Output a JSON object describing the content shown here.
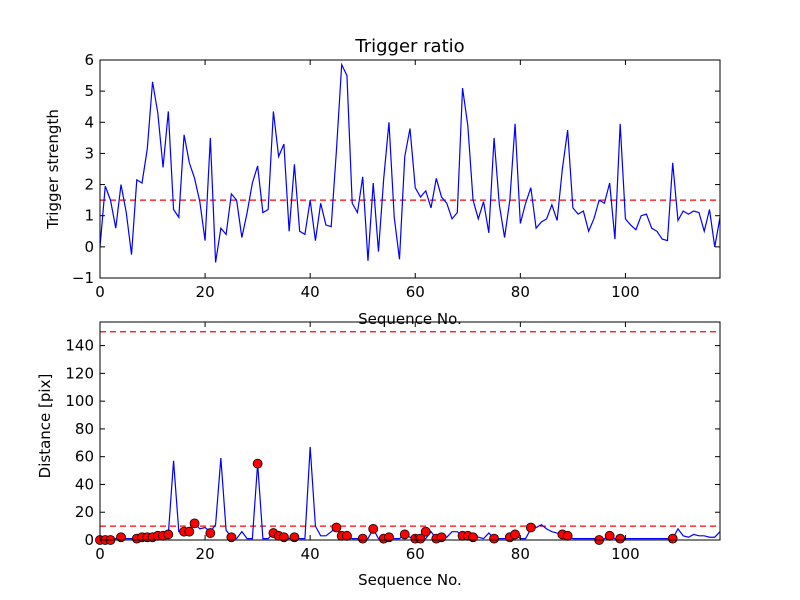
{
  "chart_data": [
    {
      "type": "line",
      "title": "Trigger ratio",
      "xlabel": "Sequence No.",
      "ylabel": "Trigger strength",
      "xlim": [
        0,
        118
      ],
      "ylim": [
        -1,
        6
      ],
      "xticks": [
        0,
        20,
        40,
        60,
        80,
        100
      ],
      "yticks": [
        -1,
        0,
        1,
        2,
        3,
        4,
        5,
        6
      ],
      "xtick_labels": [
        "0",
        "20",
        "40",
        "60",
        "80",
        "100"
      ],
      "ytick_labels": [
        "−1",
        "0",
        "1",
        "2",
        "3",
        "4",
        "5",
        "6"
      ],
      "threshold": 1.5,
      "threshold_color": "#ff0000",
      "line_color": "#0000ff",
      "series": [
        {
          "x": [
            0,
            1,
            2,
            3,
            4,
            5,
            6,
            7,
            8,
            9,
            10,
            11,
            12,
            13,
            14,
            15,
            16,
            17,
            18,
            19,
            20,
            21,
            22,
            23,
            24,
            25,
            26,
            27,
            28,
            29,
            30,
            31,
            32,
            33,
            34,
            35,
            36,
            37,
            38,
            39,
            40,
            41,
            42,
            43,
            44,
            45,
            46,
            47,
            48,
            49,
            50,
            51,
            52,
            53,
            54,
            55,
            56,
            57,
            58,
            59,
            60,
            61,
            62,
            63,
            64,
            65,
            66,
            67,
            68,
            69,
            70,
            71,
            72,
            73,
            74,
            75,
            76,
            77,
            78,
            79,
            80,
            81,
            82,
            83,
            84,
            85,
            86,
            87,
            88,
            89,
            90,
            91,
            92,
            93,
            94,
            95,
            96,
            97,
            98,
            99,
            100,
            101,
            102,
            103,
            104,
            105,
            106,
            107,
            108,
            109,
            110,
            111,
            112,
            113,
            114,
            115,
            116,
            117,
            118
          ],
          "y": [
            0.0,
            1.95,
            1.5,
            0.6,
            2.0,
            1.1,
            -0.25,
            2.15,
            2.05,
            3.15,
            5.3,
            4.3,
            2.55,
            4.35,
            1.2,
            0.95,
            3.6,
            2.7,
            2.2,
            1.45,
            0.2,
            3.5,
            -0.5,
            0.6,
            0.4,
            1.7,
            1.5,
            0.3,
            1.1,
            2.05,
            2.6,
            1.1,
            1.2,
            4.35,
            2.9,
            3.3,
            0.5,
            2.65,
            0.5,
            0.4,
            1.5,
            0.2,
            1.4,
            0.7,
            0.65,
            3.1,
            5.85,
            5.5,
            1.4,
            1.1,
            2.25,
            -0.45,
            2.05,
            -0.15,
            2.2,
            4.0,
            0.95,
            -0.4,
            2.9,
            3.8,
            1.9,
            1.6,
            1.8,
            1.25,
            2.2,
            1.6,
            1.4,
            0.9,
            1.1,
            5.1,
            3.9,
            1.5,
            0.9,
            1.45,
            0.45,
            3.5,
            1.35,
            0.3,
            1.5,
            3.95,
            0.75,
            1.4,
            1.9,
            0.6,
            0.8,
            0.9,
            1.35,
            0.85,
            2.5,
            3.75,
            1.25,
            1.05,
            1.15,
            0.5,
            0.9,
            1.5,
            1.4,
            2.05,
            0.25,
            3.95,
            0.9,
            0.7,
            0.55,
            1.0,
            1.05,
            0.6,
            0.5,
            0.25,
            0.2,
            2.7,
            0.85,
            1.15,
            1.05,
            1.15,
            1.1,
            0.5,
            1.2,
            0.0,
            0.95
          ]
        }
      ]
    },
    {
      "type": "line",
      "xlabel": "Sequence No.",
      "ylabel": "Distance [pix]",
      "xlim": [
        0,
        118
      ],
      "ylim": [
        0,
        157
      ],
      "xticks": [
        0,
        20,
        40,
        60,
        80,
        100
      ],
      "yticks": [
        0,
        20,
        40,
        60,
        80,
        100,
        120,
        140
      ],
      "xtick_labels": [
        "0",
        "20",
        "40",
        "60",
        "80",
        "100"
      ],
      "ytick_labels": [
        "0",
        "20",
        "40",
        "60",
        "80",
        "100",
        "120",
        "140"
      ],
      "thresholds": [
        10,
        150
      ],
      "threshold_color": "#ff0000",
      "line_color": "#0000ff",
      "marker_color": "#ff0000",
      "series": [
        {
          "x": [
            0,
            1,
            2,
            3,
            4,
            5,
            6,
            7,
            8,
            9,
            10,
            11,
            12,
            13,
            14,
            15,
            16,
            17,
            18,
            19,
            20,
            21,
            22,
            23,
            24,
            25,
            26,
            27,
            28,
            29,
            30,
            31,
            32,
            33,
            34,
            35,
            36,
            37,
            38,
            39,
            40,
            41,
            42,
            43,
            44,
            45,
            46,
            47,
            48,
            49,
            50,
            51,
            52,
            53,
            54,
            55,
            56,
            57,
            58,
            59,
            60,
            61,
            62,
            63,
            64,
            65,
            66,
            67,
            68,
            69,
            70,
            71,
            72,
            73,
            74,
            75,
            76,
            77,
            78,
            79,
            80,
            81,
            82,
            83,
            84,
            85,
            86,
            87,
            88,
            89,
            90,
            91,
            92,
            93,
            94,
            95,
            96,
            97,
            98,
            99,
            100,
            101,
            102,
            103,
            104,
            105,
            106,
            107,
            108,
            109,
            110,
            111,
            112,
            113,
            114,
            115,
            116,
            117,
            118
          ],
          "y": [
            1,
            1,
            1,
            1,
            2,
            1,
            1,
            1,
            2,
            2,
            2,
            3,
            3,
            4,
            57,
            6,
            6,
            7,
            12,
            8,
            9,
            6,
            11,
            59,
            7,
            2,
            1,
            6,
            1,
            1,
            55,
            1,
            1,
            5,
            3,
            2,
            1,
            2,
            1,
            1,
            67,
            10,
            3,
            3,
            6,
            9,
            3,
            3,
            1,
            1,
            1,
            1,
            8,
            1,
            1,
            2,
            1,
            1,
            4,
            2,
            1,
            1,
            1,
            6,
            1,
            2,
            2,
            6,
            6,
            3,
            3,
            3,
            2,
            1,
            5,
            1,
            1,
            1,
            2,
            4,
            1,
            1,
            8,
            9,
            11,
            8,
            6,
            5,
            4,
            3,
            1,
            1,
            1,
            1,
            1,
            1,
            1,
            3,
            1,
            1,
            1,
            1,
            1,
            1,
            1,
            1,
            1,
            1,
            1,
            1,
            8,
            3,
            2,
            4,
            3,
            3,
            2,
            2,
            6
          ]
        }
      ],
      "markers": {
        "x": [
          0,
          1,
          2,
          4,
          7,
          8,
          9,
          10,
          11,
          12,
          13,
          16,
          17,
          18,
          21,
          25,
          30,
          33,
          34,
          35,
          37,
          45,
          46,
          47,
          50,
          52,
          54,
          55,
          58,
          60,
          61,
          62,
          64,
          65,
          69,
          70,
          71,
          75,
          78,
          79,
          82,
          88,
          89,
          95,
          97,
          99,
          109
        ],
        "y": [
          0,
          0,
          0,
          2,
          1,
          2,
          2,
          2,
          3,
          3,
          4,
          6,
          6,
          12,
          5,
          2,
          55,
          5,
          3,
          2,
          2,
          9,
          3,
          3,
          1,
          8,
          1,
          2,
          4,
          1,
          1,
          6,
          1,
          2,
          3,
          3,
          2,
          1,
          2,
          4,
          9,
          4,
          3,
          0,
          3,
          1,
          1
        ]
      }
    }
  ]
}
